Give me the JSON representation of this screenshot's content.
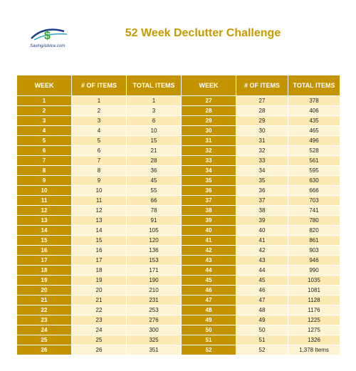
{
  "header": {
    "logo_text": "SavingAdvice.com",
    "title": "52 Week Declutter Challenge"
  },
  "table": {
    "headers": [
      "WEEK",
      "# OF ITEMS",
      "TOTAL ITEMS",
      "WEEK",
      "# OF ITEMS",
      "TOTAL ITEMS"
    ],
    "rows": [
      [
        "1",
        "1",
        "1",
        "27",
        "27",
        "378"
      ],
      [
        "2",
        "2",
        "3",
        "28",
        "28",
        "406"
      ],
      [
        "3",
        "3",
        "6",
        "29",
        "29",
        "435"
      ],
      [
        "4",
        "4",
        "10",
        "30",
        "30",
        "465"
      ],
      [
        "5",
        "5",
        "15",
        "31",
        "31",
        "496"
      ],
      [
        "6",
        "6",
        "21",
        "32",
        "32",
        "528"
      ],
      [
        "7",
        "7",
        "28",
        "33",
        "33",
        "561"
      ],
      [
        "8",
        "8",
        "36",
        "34",
        "34",
        "595"
      ],
      [
        "9",
        "9",
        "45",
        "35",
        "35",
        "630"
      ],
      [
        "10",
        "10",
        "55",
        "36",
        "36",
        "666"
      ],
      [
        "11",
        "11",
        "66",
        "37",
        "37",
        "703"
      ],
      [
        "12",
        "12",
        "78",
        "38",
        "38",
        "741"
      ],
      [
        "13",
        "13",
        "91",
        "39",
        "39",
        "780"
      ],
      [
        "14",
        "14",
        "105",
        "40",
        "40",
        "820"
      ],
      [
        "15",
        "15",
        "120",
        "41",
        "41",
        "861"
      ],
      [
        "16",
        "16",
        "136",
        "42",
        "42",
        "903"
      ],
      [
        "17",
        "17",
        "153",
        "43",
        "43",
        "946"
      ],
      [
        "18",
        "18",
        "171",
        "44",
        "44",
        "990"
      ],
      [
        "19",
        "19",
        "190",
        "45",
        "45",
        "1035"
      ],
      [
        "20",
        "20",
        "210",
        "46",
        "46",
        "1081"
      ],
      [
        "21",
        "21",
        "231",
        "47",
        "47",
        "1128"
      ],
      [
        "22",
        "22",
        "253",
        "48",
        "48",
        "1176"
      ],
      [
        "23",
        "23",
        "276",
        "49",
        "49",
        "1225"
      ],
      [
        "24",
        "24",
        "300",
        "50",
        "50",
        "1275"
      ],
      [
        "25",
        "25",
        "325",
        "51",
        "51",
        "1326"
      ],
      [
        "26",
        "26",
        "351",
        "52",
        "52",
        "1,378 Items"
      ]
    ]
  },
  "colors": {
    "accent": "#c49300",
    "row_light": "#fdf4d4",
    "row_dark": "#fbeab4",
    "title": "#c79a00"
  }
}
